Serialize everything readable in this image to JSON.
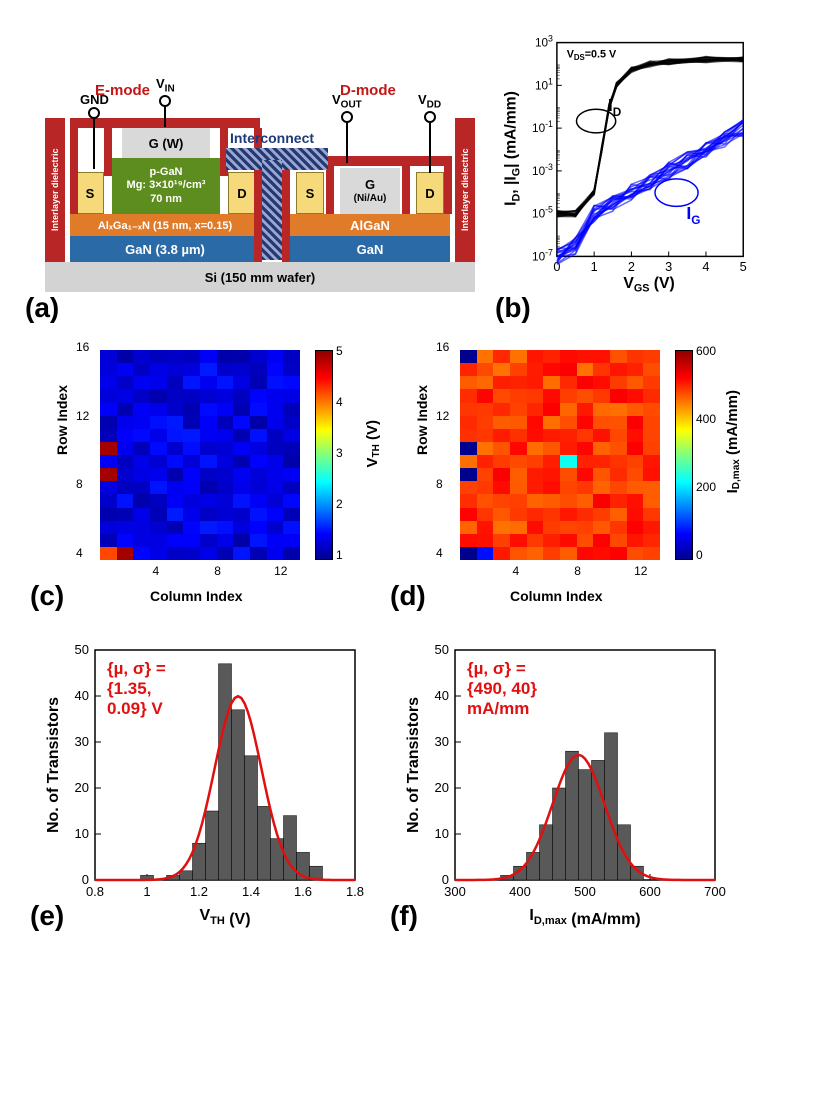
{
  "panels": {
    "a_letter": "(a)",
    "b_letter": "(b)",
    "c_letter": "(c)",
    "d_letter": "(d)",
    "e_letter": "(e)",
    "f_letter": "(f)"
  },
  "schematic": {
    "emode_label": "E-mode",
    "dmode_label": "D-mode",
    "interconnect_label": "Interconnect",
    "terminals": {
      "gnd": "GND",
      "vin": "V_IN",
      "vout": "V_OUT",
      "vdd": "V_DD"
    },
    "layers": {
      "si": "Si   (150 mm wafer)",
      "gan_l": "GaN   (3.8 µm)",
      "gan_r": "GaN",
      "algan_l": "AlₓGa₁₋ₓN   (15 nm, x=0.15)",
      "algan_r": "AlGaN",
      "pgan_l1": "p-GaN",
      "pgan_l2": "Mg: 3×10¹⁹/cm³",
      "pgan_l3": "70 nm",
      "gate_e": "G (W)",
      "gate_d": "G",
      "gate_d_mat": "(Ni/Au)",
      "s": "S",
      "d": "D",
      "interlayer": "Interlayer dielectric"
    },
    "colors": {
      "si": "#d3d3d3",
      "gan": "#2a6aa6",
      "algan": "#e07b2a",
      "pgan": "#5d8c1f",
      "gate": "#d9d9d9",
      "sd": "#f5d97a",
      "dielectric": "#b82626",
      "interconnect": "#26386f",
      "text_red": "#c31616",
      "text_blue": "#1d3a7a"
    }
  },
  "panel_b": {
    "type": "line",
    "xlabel": "V_GS (V)",
    "ylabel": "I_D, |I_G| (mA/mm)",
    "xlim": [
      0,
      5
    ],
    "ylim_exp": [
      -7,
      3
    ],
    "xticks": [
      0,
      1,
      2,
      3,
      4,
      5
    ],
    "ytick_exp": [
      -7,
      -5,
      -3,
      -1,
      1,
      3
    ],
    "annotation_vds": "V_DS=0.5 V",
    "series": {
      "id": {
        "label": "I_D",
        "color": "#000000",
        "points_x": [
          0,
          0.5,
          1.0,
          1.2,
          1.4,
          1.6,
          2.0,
          2.5,
          3,
          4,
          5
        ],
        "points_y_exp": [
          -5,
          -5,
          -4,
          -2,
          0,
          1,
          1.7,
          2,
          2.1,
          2.2,
          2.2
        ]
      },
      "ig": {
        "label": "I_G",
        "color": "#0000ff",
        "points_x": [
          0,
          0.5,
          1.0,
          1.5,
          2.0,
          2.5,
          3,
          3.5,
          4,
          4.5,
          5
        ],
        "points_y_exp": [
          -7,
          -6.5,
          -5,
          -4.5,
          -4,
          -3.5,
          -3,
          -2.5,
          -2,
          -1.5,
          -1
        ]
      }
    }
  },
  "panel_c": {
    "type": "heatmap",
    "xlabel": "Column Index",
    "ylabel": "Row Index",
    "cbar_label": "V_TH (V)",
    "xlim": [
      1,
      12
    ],
    "ylim": [
      1,
      16
    ],
    "xticks": [
      4,
      8,
      12
    ],
    "yticks": [
      4,
      8,
      12,
      16
    ],
    "vmin": 1,
    "vmax": 5,
    "cbar_ticks": [
      1,
      2,
      3,
      4,
      5
    ],
    "colormap": "jet",
    "outliers": [
      [
        1,
        1,
        4.2
      ],
      [
        1,
        2,
        4.9
      ],
      [
        7,
        1,
        4.9
      ],
      [
        9,
        1,
        4.9
      ]
    ],
    "base_value": 1.35
  },
  "panel_d": {
    "type": "heatmap",
    "xlabel": "Column Index",
    "ylabel": "Row Index",
    "cbar_label": "I_D,max (mA/mm)",
    "xlim": [
      1,
      12
    ],
    "ylim": [
      1,
      16
    ],
    "xticks": [
      4,
      8,
      12
    ],
    "yticks": [
      4,
      8,
      12,
      16
    ],
    "vmin": 0,
    "vmax": 600,
    "cbar_ticks": [
      0,
      200,
      400,
      600
    ],
    "colormap": "jet",
    "outliers": [
      [
        1,
        1,
        0
      ],
      [
        1,
        2,
        80
      ],
      [
        7,
        1,
        0
      ],
      [
        9,
        1,
        0
      ],
      [
        8,
        7,
        230
      ],
      [
        16,
        1,
        0
      ]
    ],
    "base_value": 490
  },
  "panel_e": {
    "type": "histogram",
    "xlabel": "V_TH (V)",
    "ylabel": "No. of Transistors",
    "xlim": [
      0.8,
      1.8
    ],
    "ylim": [
      0,
      50
    ],
    "xticks": [
      0.8,
      1.0,
      1.2,
      1.4,
      1.6,
      1.8
    ],
    "yticks": [
      0,
      10,
      20,
      30,
      40,
      50
    ],
    "annotation": "{µ, σ} =\n{1.35,\n0.09} V",
    "ann_color": "#e01010",
    "bar_color": "#595959",
    "curve_color": "#e01010",
    "mu": 1.35,
    "sigma": 0.09,
    "bins_x": [
      1.0,
      1.05,
      1.1,
      1.15,
      1.2,
      1.25,
      1.3,
      1.35,
      1.4,
      1.45,
      1.5,
      1.55,
      1.6,
      1.65
    ],
    "bins_y": [
      1,
      0,
      1,
      2,
      8,
      15,
      47,
      37,
      27,
      16,
      9,
      14,
      6,
      3
    ]
  },
  "panel_f": {
    "type": "histogram",
    "xlabel": "I_D,max (mA/mm)",
    "ylabel": "No. of Transistors",
    "xlim": [
      300,
      700
    ],
    "ylim": [
      0,
      50
    ],
    "xticks": [
      300,
      400,
      500,
      600,
      700
    ],
    "yticks": [
      0,
      10,
      20,
      30,
      40,
      50
    ],
    "annotation": "{µ, σ} =\n{490, 40}\nmA/mm",
    "ann_color": "#e01010",
    "bar_color": "#595959",
    "curve_color": "#e01010",
    "mu": 490,
    "sigma": 40,
    "bins_x": [
      380,
      400,
      420,
      440,
      460,
      480,
      500,
      520,
      540,
      560,
      580
    ],
    "bins_y": [
      1,
      3,
      6,
      12,
      20,
      28,
      24,
      26,
      32,
      12,
      3
    ]
  },
  "colormap_jet": [
    [
      0.0,
      "#00008f"
    ],
    [
      0.12,
      "#0000ff"
    ],
    [
      0.37,
      "#00ffff"
    ],
    [
      0.5,
      "#7fff7f"
    ],
    [
      0.62,
      "#ffff00"
    ],
    [
      0.87,
      "#ff0000"
    ],
    [
      1.0,
      "#8f0000"
    ]
  ]
}
